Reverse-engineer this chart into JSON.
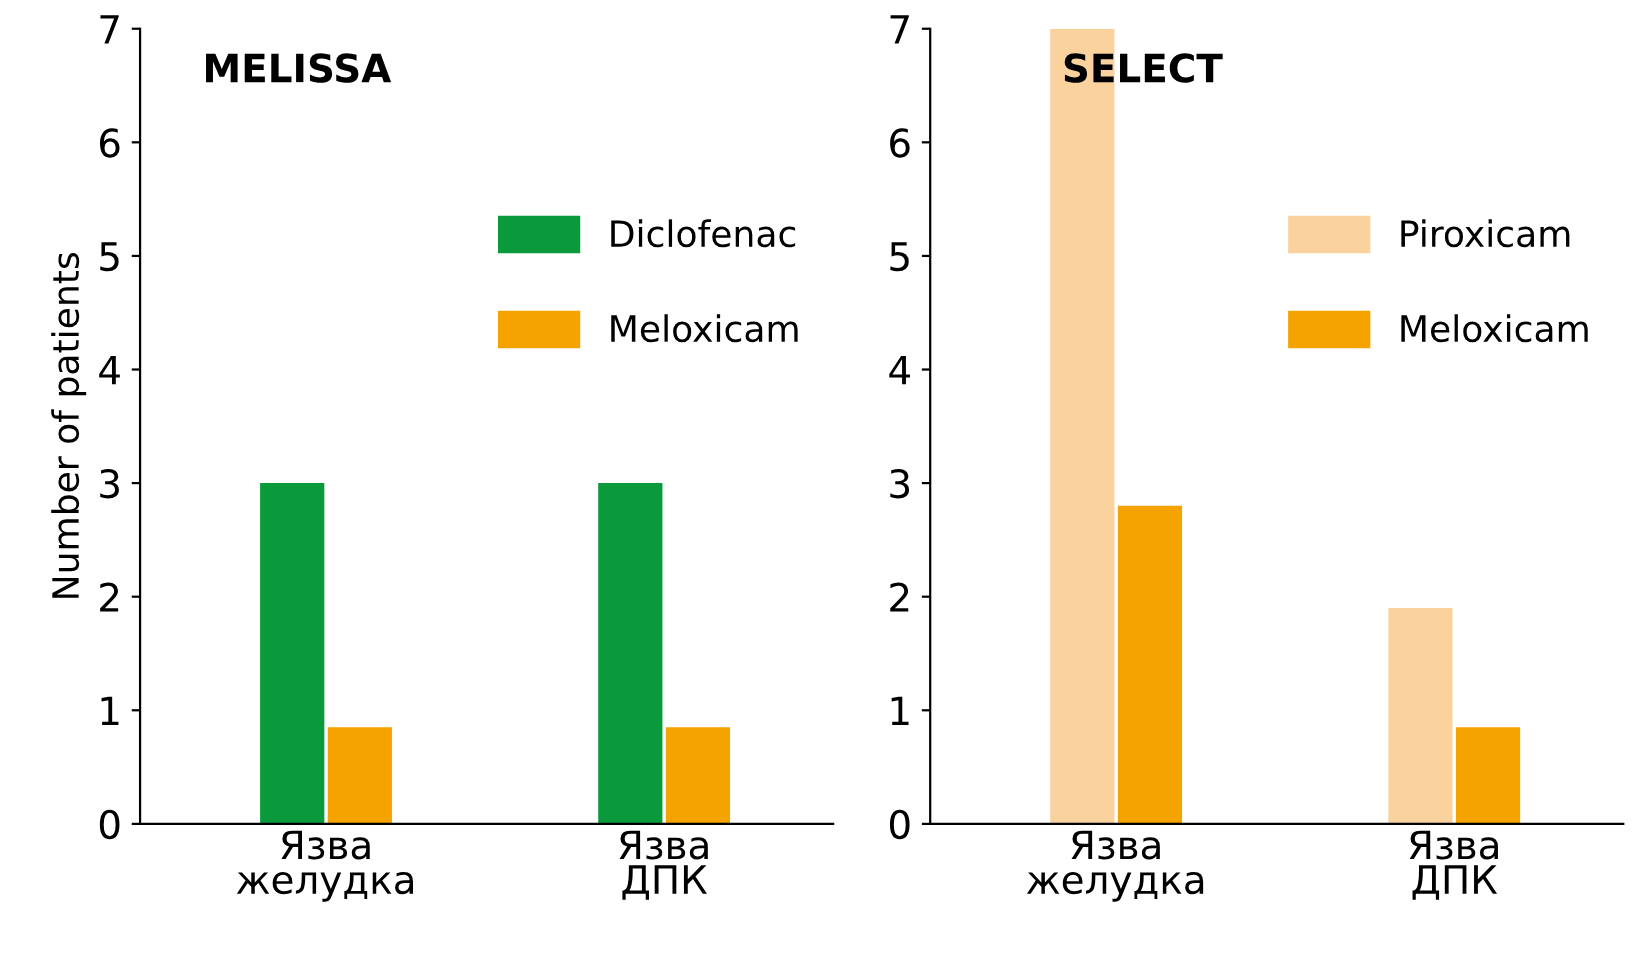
{
  "chart_data": [
    {
      "type": "bar",
      "title": "MELISSA",
      "ylabel": "Number of patients",
      "categories": [
        "Язва\nжелудка",
        "Язва\nДПК"
      ],
      "series": [
        {
          "name": "Diclofenac",
          "color": "#0a9a3c",
          "values": [
            3,
            3
          ]
        },
        {
          "name": "Meloxicam",
          "color": "#f5a300",
          "values": [
            0.85,
            0.85
          ]
        }
      ],
      "ylim": [
        0,
        7
      ],
      "yticks": [
        0,
        1,
        2,
        3,
        4,
        5,
        6,
        7
      ],
      "grid": false,
      "legend": "right"
    },
    {
      "type": "bar",
      "title": "SELECT",
      "categories": [
        "Язва\nжелудка",
        "Язва\nДПК"
      ],
      "series": [
        {
          "name": "Piroxicam",
          "color": "#fad29e",
          "values": [
            7,
            1.9
          ]
        },
        {
          "name": "Meloxicam",
          "color": "#f5a300",
          "values": [
            2.8,
            0.85
          ]
        }
      ],
      "ylim": [
        0,
        7
      ],
      "yticks": [
        0,
        1,
        2,
        3,
        4,
        5,
        6,
        7
      ],
      "grid": false,
      "legend": "right"
    }
  ]
}
